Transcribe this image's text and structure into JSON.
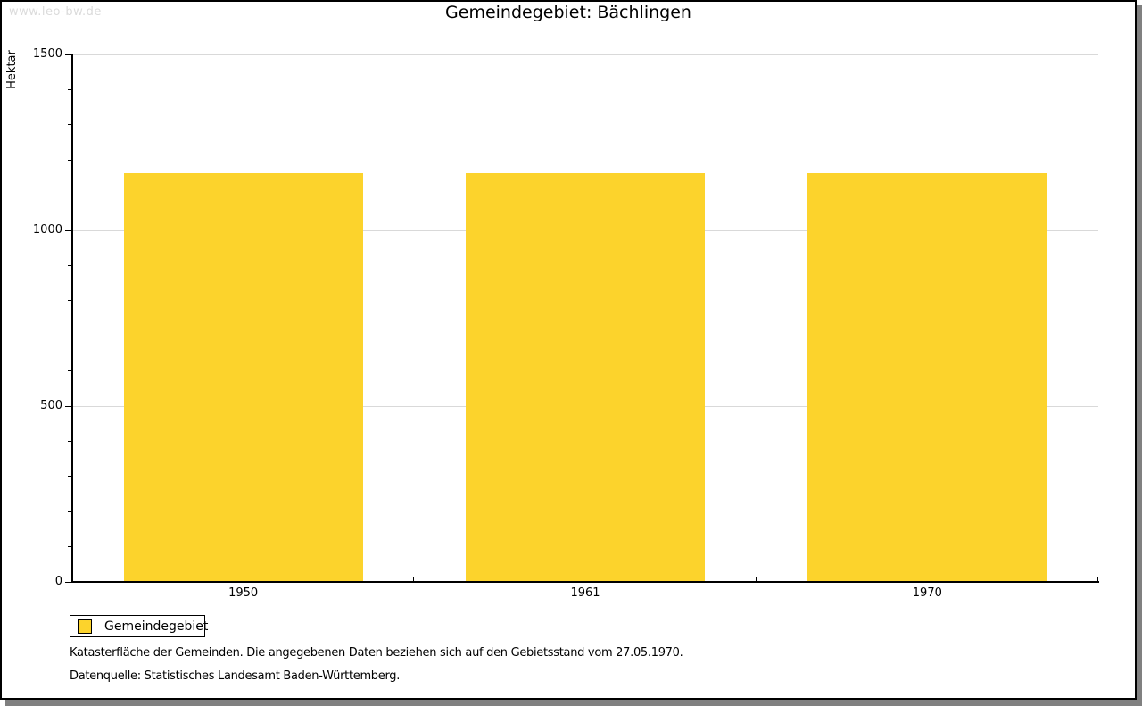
{
  "watermark": "www.leo-bw.de",
  "title": "Gemeindegebiet: Bächlingen",
  "legend": {
    "label": "Gemeindegebiet"
  },
  "footnotes": {
    "line1": "Katasterfläche der Gemeinden. Die angegebenen Daten beziehen sich auf den Gebietsstand vom 27.05.1970.",
    "line2": "Datenquelle: Statistisches Landesamt Baden-Württemberg."
  },
  "colors": {
    "bar": "#FCD32C",
    "gridline": "#D9D9D9",
    "axis": "#000000",
    "frame_shadow": "#808080",
    "watermark_text": "#DBDBDB"
  },
  "chart_data": {
    "type": "bar",
    "categories": [
      "1950",
      "1961",
      "1970"
    ],
    "series": [
      {
        "name": "Gemeindegebiet",
        "values": [
          1162,
          1162,
          1162
        ]
      }
    ],
    "title": "Gemeindegebiet: Bächlingen",
    "xlabel": "",
    "ylabel": "Hektar",
    "ylim": [
      0,
      1500
    ],
    "yticks_major": [
      0,
      500,
      1000,
      1500
    ],
    "ytick_minor_step": 100,
    "grid": "horizontal-major-lines",
    "legend_position": "bottom-left"
  }
}
